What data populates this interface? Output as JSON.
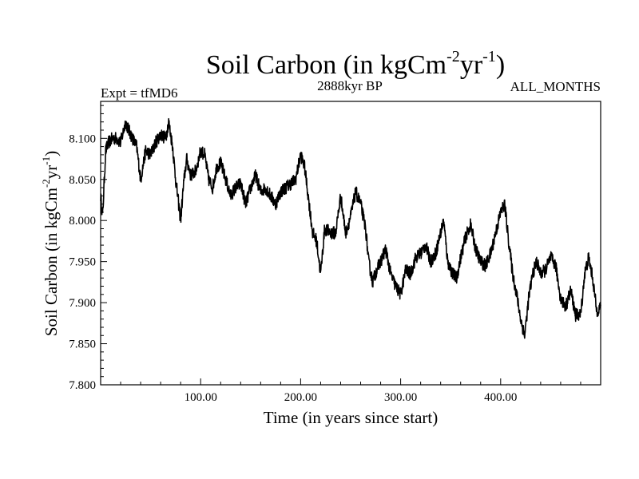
{
  "chart_data": {
    "type": "line",
    "title": {
      "main": "Soil Carbon (in kgCm",
      "sup1": "-2",
      "mid": "yr",
      "sup2": "-1",
      "end": ")"
    },
    "subtitle_left": "Expt = tfMD6",
    "subtitle_center": "2888kyr BP",
    "subtitle_right": "ALL_MONTHS",
    "xlabel": "Time (in years since start)",
    "ylabel": {
      "main": "Soil Carbon (in kgCm",
      "sup1": "-2",
      "mid": "yr",
      "sup2": "-1",
      "end": ")"
    },
    "xlim": [
      0,
      500
    ],
    "ylim": [
      7.8,
      8.145
    ],
    "xticks": [
      100,
      200,
      300,
      400
    ],
    "xtick_labels": [
      "100.00",
      "200.00",
      "300.00",
      "400.00"
    ],
    "yticks": [
      7.8,
      7.85,
      7.9,
      7.95,
      8.0,
      8.05,
      8.1
    ],
    "ytick_labels": [
      "7.800",
      "7.850",
      "7.900",
      "7.950",
      "8.000",
      "8.050",
      "8.100"
    ],
    "grid": false,
    "series": [
      {
        "name": "Soil Carbon",
        "color": "#000000",
        "noise_amplitude": 0.008,
        "x": [
          0,
          2,
          5,
          8,
          12,
          16,
          20,
          25,
          28,
          32,
          36,
          40,
          45,
          50,
          55,
          60,
          65,
          68,
          72,
          75,
          80,
          83,
          86,
          90,
          95,
          100,
          104,
          108,
          112,
          116,
          120,
          125,
          130,
          135,
          140,
          145,
          150,
          155,
          160,
          165,
          170,
          175,
          180,
          185,
          190,
          195,
          200,
          204,
          208,
          212,
          216,
          220,
          224,
          230,
          235,
          240,
          245,
          250,
          255,
          260,
          265,
          268,
          272,
          276,
          280,
          285,
          290,
          295,
          300,
          305,
          310,
          315,
          320,
          325,
          330,
          335,
          340,
          343,
          347,
          352,
          356,
          360,
          365,
          370,
          375,
          380,
          385,
          390,
          395,
          400,
          404,
          408,
          412,
          416,
          420,
          424,
          428,
          432,
          436,
          440,
          445,
          450,
          455,
          460,
          465,
          470,
          475,
          480,
          484,
          488,
          492,
          496,
          500
        ],
        "values": [
          8.03,
          8.005,
          8.085,
          8.095,
          8.1,
          8.1,
          8.095,
          8.12,
          8.11,
          8.1,
          8.09,
          8.05,
          8.085,
          8.08,
          8.095,
          8.105,
          8.1,
          8.12,
          8.09,
          8.05,
          8.0,
          8.045,
          8.075,
          8.055,
          8.06,
          8.085,
          8.08,
          8.05,
          8.04,
          8.065,
          8.07,
          8.05,
          8.03,
          8.04,
          8.045,
          8.02,
          8.04,
          8.055,
          8.035,
          8.04,
          8.03,
          8.02,
          8.035,
          8.04,
          8.045,
          8.05,
          8.08,
          8.065,
          8.025,
          7.985,
          7.975,
          7.935,
          7.99,
          7.985,
          7.985,
          8.03,
          7.985,
          8.005,
          8.035,
          8.02,
          7.99,
          7.95,
          7.925,
          7.94,
          7.95,
          7.965,
          7.935,
          7.92,
          7.91,
          7.94,
          7.935,
          7.955,
          7.96,
          7.97,
          7.95,
          7.96,
          7.985,
          8.0,
          7.95,
          7.935,
          7.93,
          7.955,
          7.98,
          7.995,
          7.965,
          7.95,
          7.945,
          7.96,
          7.985,
          8.01,
          8.02,
          7.975,
          7.935,
          7.91,
          7.88,
          7.86,
          7.905,
          7.935,
          7.95,
          7.935,
          7.94,
          7.955,
          7.945,
          7.905,
          7.895,
          7.915,
          7.885,
          7.885,
          7.935,
          7.955,
          7.93,
          7.89,
          7.895
        ]
      }
    ]
  }
}
